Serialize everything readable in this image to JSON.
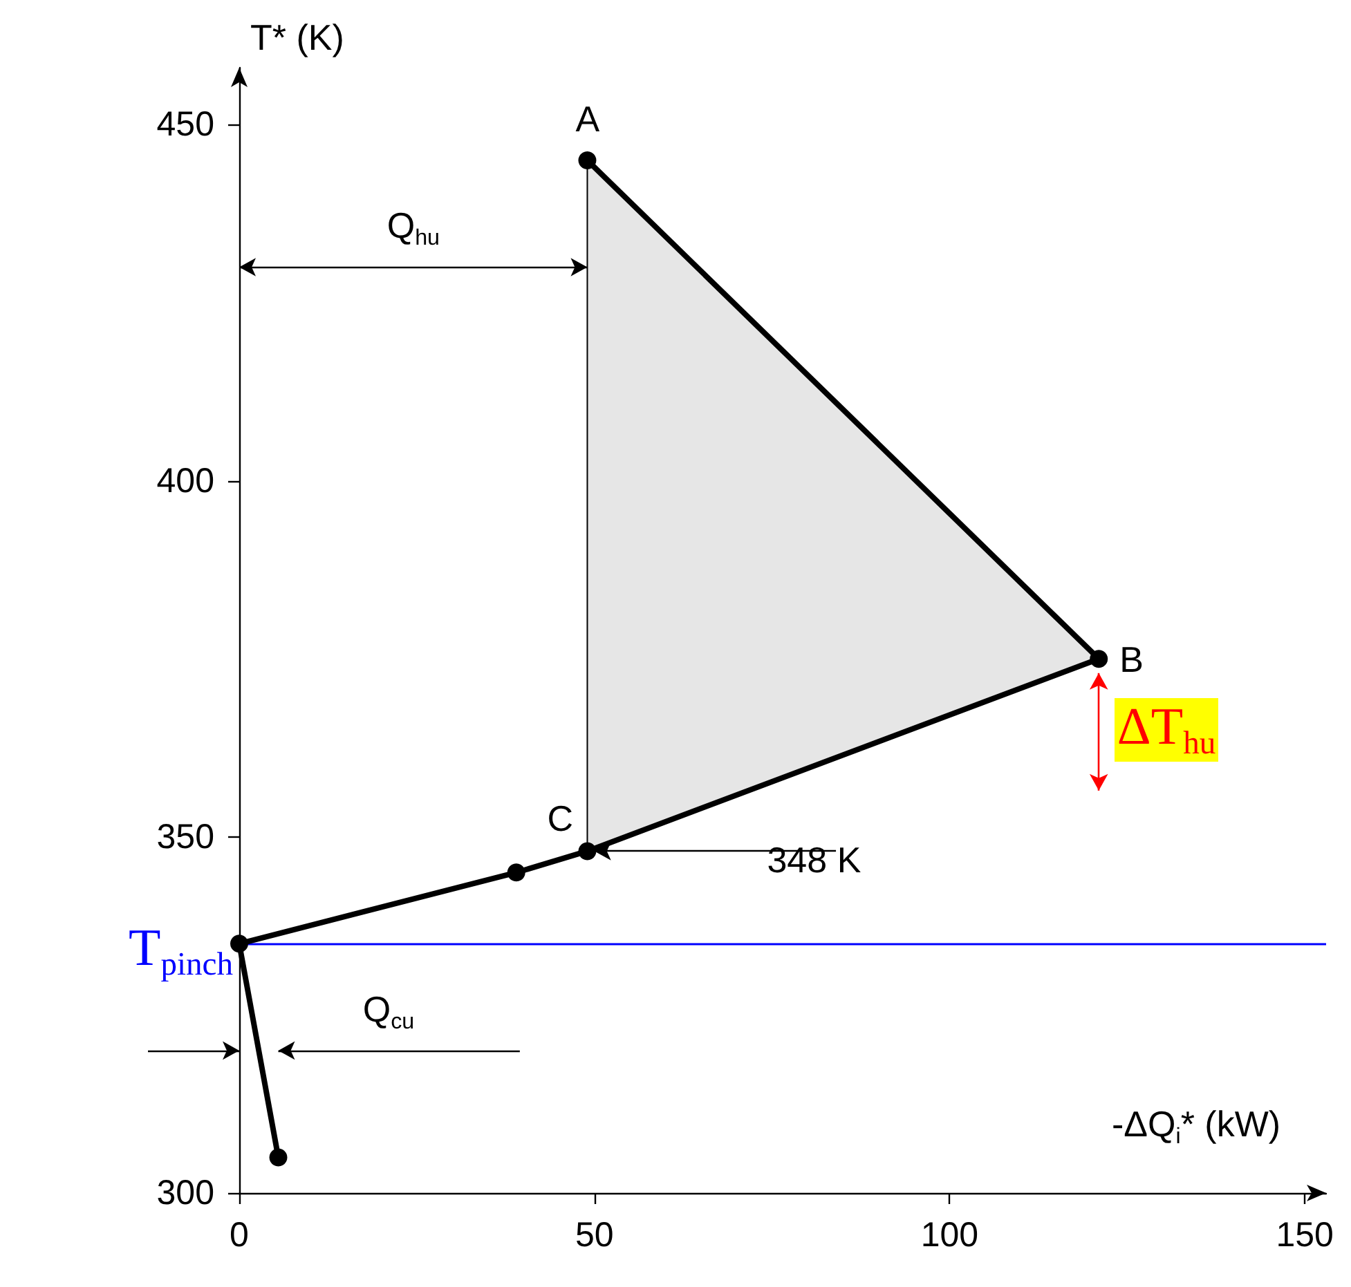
{
  "chart_data": {
    "type": "line",
    "xlabel": "-ΔQ$_{i}$* (kW)",
    "ylabel": "T* (K)",
    "xlim": [
      0,
      153
    ],
    "xticks": [
      0,
      50,
      100,
      150
    ],
    "ylim": [
      300,
      458
    ],
    "yticks": [
      300,
      350,
      400,
      450
    ],
    "grid": false,
    "marker": "circle",
    "line_style": "solid",
    "series": [
      {
        "type": "line",
        "color": "#000000",
        "x": [
          5.5,
          0,
          39,
          49,
          121,
          49
        ],
        "values": [
          305,
          335,
          345,
          348,
          375,
          445
        ]
      },
      {
        "type": "area",
        "color": "#e6e6e6",
        "marker": "none",
        "x": [
          49,
          121,
          49
        ],
        "values": [
          445,
          375,
          348
        ]
      }
    ],
    "ref_lines": [
      {
        "axis": "y",
        "value": 335,
        "label": "T$_{pinch}$",
        "color": "#0000ff"
      }
    ],
    "annotations": [
      "A",
      "B",
      "C",
      {
        "text": "348 K",
        "x": 49,
        "y": 348
      },
      "Q$_{hu}$",
      "Q$_{cu}$",
      "ΔT$_{hu}$"
    ]
  }
}
